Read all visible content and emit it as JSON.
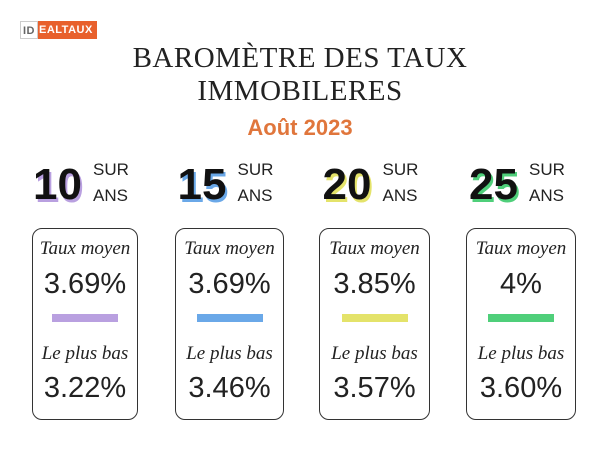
{
  "logo": {
    "prefix": "ID",
    "name": "EALTAUX"
  },
  "header": {
    "title_lines": [
      "BAROMÈTRE DES TAUX",
      "IMMOBILERES"
    ],
    "subtitle": "Août 2023"
  },
  "columns": [
    {
      "duration": "10",
      "sur": "SUR",
      "ans": "ANS",
      "avg_label": "Taux moyen",
      "avg_rate": "3.69%",
      "low_label": "Le plus bas",
      "low_rate": "3.22%",
      "color": "#b9a0e0"
    },
    {
      "duration": "15",
      "sur": "SUR",
      "ans": "ANS",
      "avg_label": "Taux moyen",
      "avg_rate": "3.69%",
      "low_label": "Le plus bas",
      "low_rate": "3.46%",
      "color": "#6aa8e8"
    },
    {
      "duration": "20",
      "sur": "SUR",
      "ans": "ANS",
      "avg_label": "Taux moyen",
      "avg_rate": "3.85%",
      "low_label": "Le plus bas",
      "low_rate": "3.57%",
      "color": "#e4e36a"
    },
    {
      "duration": "25",
      "sur": "SUR",
      "ans": "ANS",
      "avg_label": "Taux moyen",
      "avg_rate": "4%",
      "low_label": "Le plus bas",
      "low_rate": "3.60%",
      "color": "#4fcf7a"
    }
  ]
}
